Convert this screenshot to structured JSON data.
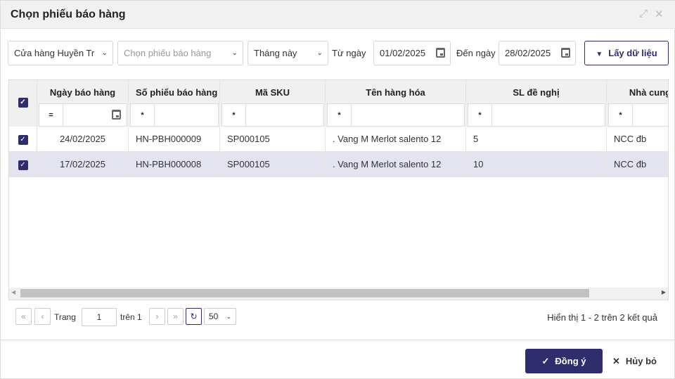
{
  "dialog": {
    "title": "Chọn phiếu báo hàng"
  },
  "filters": {
    "store": "Cửa hàng Huyền Trần",
    "voucher_placeholder": "Chọn phiếu báo hàng",
    "period": "Tháng này",
    "from_label": "Từ ngày",
    "from_date": "01/02/2025",
    "to_label": "Đến ngày",
    "to_date": "28/02/2025",
    "get_data_label": "Lấy dữ liệu"
  },
  "table": {
    "columns": [
      "Ngày báo hàng",
      "Số phiếu báo hàng",
      "Mã SKU",
      "Tên hàng hóa",
      "SL đề nghị",
      "Nhà cung cấp"
    ],
    "filter_ops": [
      "=",
      "*",
      "*",
      "*",
      "*",
      "*"
    ],
    "rows": [
      {
        "checked": true,
        "cells": [
          "24/02/2025",
          "HN-PBH000009",
          "SP000105",
          ". Vang M Merlot salento 12",
          "5",
          "NCC đb"
        ]
      },
      {
        "checked": true,
        "selected": true,
        "cells": [
          "17/02/2025",
          "HN-PBH000008",
          "SP000105",
          ". Vang M Merlot salento 12",
          "10",
          "NCC đb"
        ]
      }
    ]
  },
  "pager": {
    "page_label": "Trang",
    "page": "1",
    "of_label": "trên 1",
    "page_size": "50",
    "summary": "Hiển thị 1 - 2 trên 2 kết quả"
  },
  "actions": {
    "ok": "Đồng ý",
    "cancel": "Hủy bỏ"
  },
  "colors": {
    "accent": "#2f2d6b",
    "selected_row": "#e3e4f0"
  }
}
